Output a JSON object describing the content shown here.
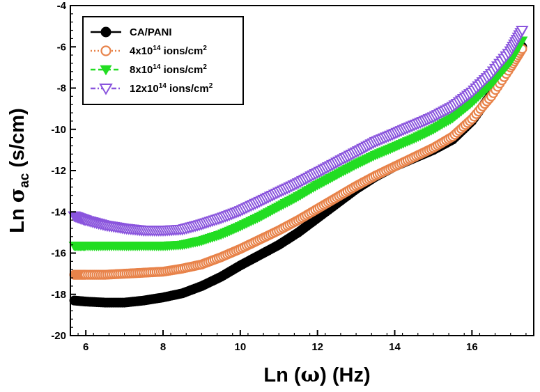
{
  "chart_data": {
    "type": "scatter",
    "xlabel": {
      "prefix": "Ln (",
      "symbol": "ω",
      "suffix": ") (Hz)"
    },
    "ylabel": {
      "prefix": "Ln ",
      "symbol": "σ",
      "subscript": "ac",
      "suffix": " (s/cm)"
    },
    "xlim": [
      5.6,
      17.6
    ],
    "ylim": [
      -20,
      -4
    ],
    "xticks": [
      "6",
      "8",
      "10",
      "12",
      "14",
      "16"
    ],
    "yticks": [
      "-4",
      "-6",
      "-8",
      "-10",
      "-12",
      "-14",
      "-16",
      "-18",
      "-20"
    ],
    "legend_position": "top-left",
    "series": [
      {
        "name": {
          "base": "CA/PANI",
          "sup": "",
          "suffix": ""
        },
        "color": "#000000",
        "marker": "filled-circle",
        "line": "solid",
        "points": [
          [
            5.7,
            -18.3
          ],
          [
            6.0,
            -18.35
          ],
          [
            6.5,
            -18.4
          ],
          [
            7.0,
            -18.4
          ],
          [
            7.5,
            -18.3
          ],
          [
            8.0,
            -18.15
          ],
          [
            8.5,
            -17.95
          ],
          [
            9.0,
            -17.6
          ],
          [
            9.5,
            -17.15
          ],
          [
            10.0,
            -16.6
          ],
          [
            10.5,
            -16.1
          ],
          [
            11.0,
            -15.6
          ],
          [
            11.5,
            -15.0
          ],
          [
            12.0,
            -14.3
          ],
          [
            12.5,
            -13.6
          ],
          [
            13.0,
            -12.9
          ],
          [
            13.5,
            -12.3
          ],
          [
            14.0,
            -11.8
          ],
          [
            14.5,
            -11.4
          ],
          [
            15.0,
            -11.0
          ],
          [
            15.5,
            -10.5
          ],
          [
            16.0,
            -9.6
          ],
          [
            16.5,
            -8.3
          ],
          [
            17.0,
            -6.9
          ],
          [
            17.3,
            -6.0
          ]
        ]
      },
      {
        "name": {
          "base": "4x10",
          "sup": "14",
          "suffix": " ions/cm",
          "sup2": "2"
        },
        "color": "#e8834a",
        "marker": "open-circle",
        "line": "dotted",
        "points": [
          [
            5.7,
            -17.05
          ],
          [
            6.0,
            -17.05
          ],
          [
            6.5,
            -17.05
          ],
          [
            7.0,
            -17.0
          ],
          [
            7.5,
            -16.95
          ],
          [
            8.0,
            -16.9
          ],
          [
            8.5,
            -16.75
          ],
          [
            9.0,
            -16.55
          ],
          [
            9.5,
            -16.2
          ],
          [
            10.0,
            -15.8
          ],
          [
            10.5,
            -15.35
          ],
          [
            11.0,
            -14.9
          ],
          [
            11.5,
            -14.4
          ],
          [
            12.0,
            -13.85
          ],
          [
            12.5,
            -13.3
          ],
          [
            13.0,
            -12.75
          ],
          [
            13.5,
            -12.25
          ],
          [
            14.0,
            -11.8
          ],
          [
            14.5,
            -11.35
          ],
          [
            15.0,
            -10.9
          ],
          [
            15.5,
            -10.35
          ],
          [
            16.0,
            -9.5
          ],
          [
            16.5,
            -8.4
          ],
          [
            17.0,
            -7.0
          ],
          [
            17.3,
            -6.1
          ]
        ]
      },
      {
        "name": {
          "base": "8x10",
          "sup": "14",
          "suffix": " ions/cm",
          "sup2": "2"
        },
        "color": "#22dd22",
        "marker": "filled-triangle-down",
        "line": "dashed",
        "points": [
          [
            5.7,
            -15.65
          ],
          [
            6.0,
            -15.65
          ],
          [
            6.5,
            -15.65
          ],
          [
            7.0,
            -15.65
          ],
          [
            7.5,
            -15.65
          ],
          [
            8.0,
            -15.65
          ],
          [
            8.5,
            -15.6
          ],
          [
            9.0,
            -15.4
          ],
          [
            9.5,
            -15.1
          ],
          [
            10.0,
            -14.7
          ],
          [
            10.5,
            -14.25
          ],
          [
            11.0,
            -13.75
          ],
          [
            11.5,
            -13.25
          ],
          [
            12.0,
            -12.7
          ],
          [
            12.5,
            -12.2
          ],
          [
            13.0,
            -11.7
          ],
          [
            13.5,
            -11.25
          ],
          [
            14.0,
            -10.85
          ],
          [
            14.5,
            -10.45
          ],
          [
            15.0,
            -10.0
          ],
          [
            15.5,
            -9.45
          ],
          [
            16.0,
            -8.7
          ],
          [
            16.5,
            -7.8
          ],
          [
            17.0,
            -6.7
          ],
          [
            17.3,
            -5.7
          ]
        ]
      },
      {
        "name": {
          "base": "12x10",
          "sup": "14",
          "suffix": " ions/cm",
          "sup2": "2"
        },
        "color": "#8a55dd",
        "marker": "open-triangle-down",
        "line": "dash-dot",
        "points": [
          [
            5.7,
            -14.2
          ],
          [
            6.0,
            -14.4
          ],
          [
            6.5,
            -14.65
          ],
          [
            7.0,
            -14.8
          ],
          [
            7.5,
            -14.9
          ],
          [
            8.0,
            -14.9
          ],
          [
            8.5,
            -14.85
          ],
          [
            9.0,
            -14.6
          ],
          [
            9.5,
            -14.3
          ],
          [
            10.0,
            -13.95
          ],
          [
            10.5,
            -13.5
          ],
          [
            11.0,
            -13.05
          ],
          [
            11.5,
            -12.6
          ],
          [
            12.0,
            -12.1
          ],
          [
            12.5,
            -11.6
          ],
          [
            13.0,
            -11.1
          ],
          [
            13.5,
            -10.6
          ],
          [
            14.0,
            -10.2
          ],
          [
            14.5,
            -9.8
          ],
          [
            15.0,
            -9.4
          ],
          [
            15.5,
            -8.9
          ],
          [
            16.0,
            -8.2
          ],
          [
            16.5,
            -7.3
          ],
          [
            17.0,
            -6.2
          ],
          [
            17.3,
            -5.2
          ]
        ]
      }
    ]
  }
}
